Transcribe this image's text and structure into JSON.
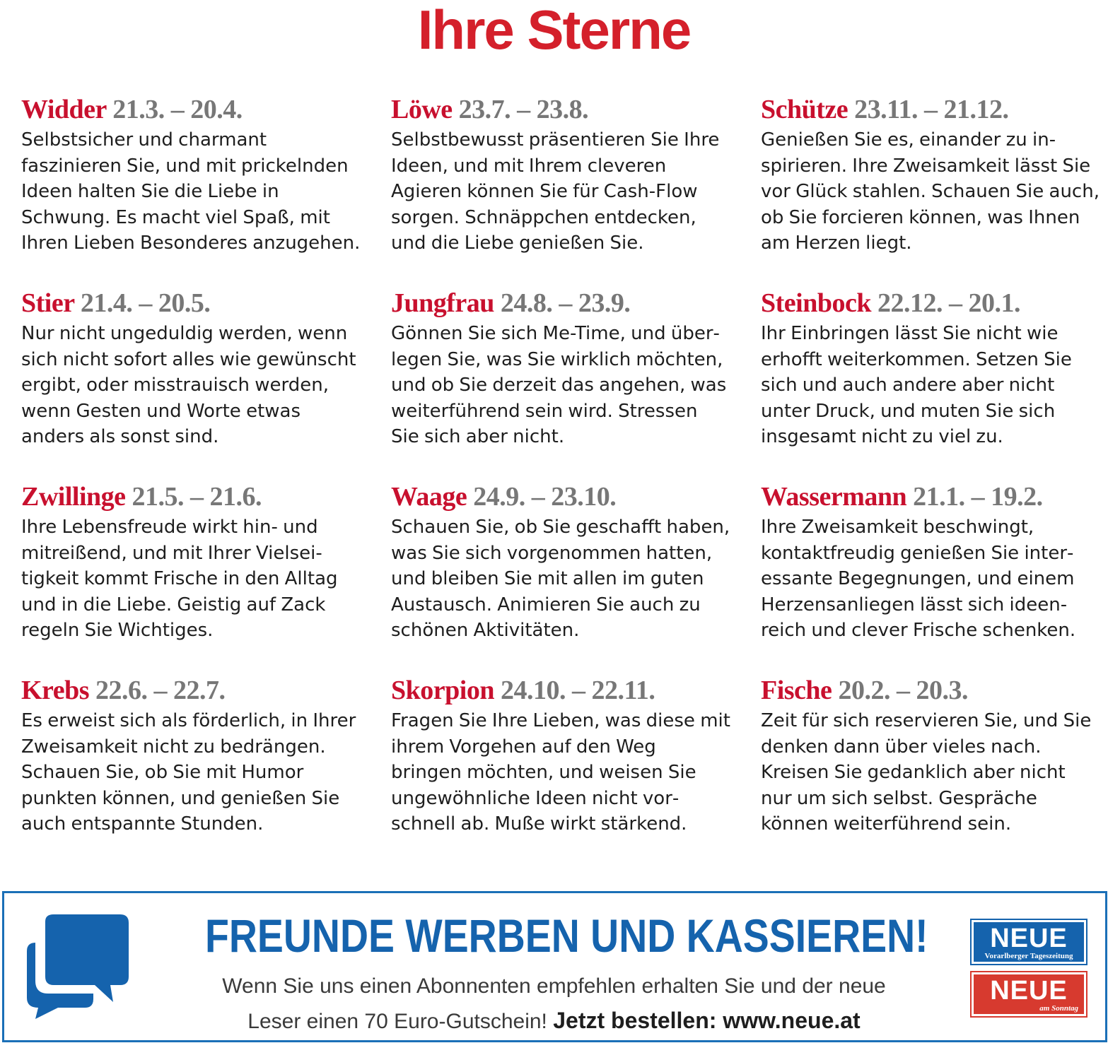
{
  "title": "Ihre Sterne",
  "signs": [
    {
      "name": "Widder",
      "dates": "21.3. – 20.4.",
      "text": "Selbstsicher und charmant faszinieren Sie, und mit prickeln­den Ideen halten Sie die Liebe in Schwung. Es macht viel Spaß, mit Ihren Lieben Besonderes anzugehen."
    },
    {
      "name": "Löwe",
      "dates": "23.7. – 23.8.",
      "text": "Selbstbewusst präsentieren Sie Ihre Ideen, und mit Ihrem cleveren Agieren können Sie für Cash-Flow sorgen. Schnäppchen entdecken, und die Liebe genießen Sie."
    },
    {
      "name": "Schütze",
      "dates": "23.11. – 21.12.",
      "text": "Genießen Sie es, einander zu in­spirieren. Ihre Zweisamkeit lässt Sie vor Glück stahlen. Schauen Sie auch, ob Sie forcieren können, was Ihnen am Herzen liegt."
    },
    {
      "name": "Stier",
      "dates": "21.4. – 20.5.",
      "text": "Nur nicht ungeduldig werden, wenn sich nicht sofort alles wie ge­wünscht ergibt, oder misstrauisch werden, wenn Gesten und Worte etwas anders als sonst sind."
    },
    {
      "name": "Jungfrau",
      "dates": "24.8. – 23.9.",
      "text": "Gönnen Sie sich Me-Time, und über­legen Sie, was Sie wirklich möchten, und ob Sie derzeit das angehen, was weiterführend sein wird. Stres­sen Sie sich aber nicht."
    },
    {
      "name": "Steinbock",
      "dates": "22.12. – 20.1.",
      "text": "Ihr Einbringen lässt Sie nicht wie erhofft weiterkommen. Setzen Sie sich und auch andere aber nicht unter Druck, und muten Sie sich insgesamt nicht zu viel zu."
    },
    {
      "name": "Zwillinge",
      "dates": "21.5. – 21.6.",
      "text": "Ihre Lebensfreude wirkt hin- und mitreißend, und mit Ihrer Vielsei­tigkeit kommt Frische in den Alltag und in die Liebe. Geistig auf Zack regeln Sie Wichtiges."
    },
    {
      "name": "Waage",
      "dates": "24.9. – 23.10.",
      "text": "Schauen Sie, ob Sie geschafft haben, was Sie sich vorgenommen hatten, und bleiben Sie mit allen im guten Austausch. Animieren Sie auch zu schönen Aktivitäten."
    },
    {
      "name": "Wassermann",
      "dates": "21.1. – 19.2.",
      "text": "Ihre Zweisamkeit beschwingt, kontaktfreudig genießen Sie inter­essante Begegnungen, und einem Herzensanliegen lässt sich ideen­reich und clever Frische schenken."
    },
    {
      "name": "Krebs",
      "dates": "22.6. – 22.7.",
      "text": "Es erweist sich als förderlich, in Ihrer Zweisamkeit nicht zu bedrän­gen. Schauen Sie, ob Sie mit Humor punkten können, und genießen Sie auch entspannte Stunden."
    },
    {
      "name": "Skorpion",
      "dates": "24.10. – 22.11.",
      "text": "Fragen Sie Ihre Lieben, was diese mit ihrem Vorgehen auf den Weg bringen möchten, und weisen Sie ungewöhnliche Ideen nicht vor­schnell ab. Muße wirkt stärkend."
    },
    {
      "name": "Fische",
      "dates": "20.2. – 20.3.",
      "text": "Zeit für sich reservieren Sie, und Sie denken dann über vieles nach. Kreisen Sie gedanklich aber nicht nur um sich selbst. Gespräche können weiterführend sein."
    }
  ],
  "promo": {
    "headline": "FREUNDE WERBEN UND KASSIEREN!",
    "body_line1": "Wenn Sie uns einen Abonnenten empfehlen erhalten Sie und der neue",
    "body_line2": "Leser einen 70 Euro-Gutschein!",
    "cta": "Jetzt bestellen: www.neue.at",
    "icon": "chat-bubbles-icon",
    "logo_top_word": "NEUE",
    "logo_top_sub": "Vorarlberger Tageszeitung",
    "logo_bottom_word": "NEUE",
    "logo_bottom_sub": "am Sonntag"
  },
  "colors": {
    "title_red": "#d4202b",
    "sign_red": "#c8102e",
    "date_gray": "#777777",
    "promo_blue": "#1563ad",
    "logo_red": "#d73a2f"
  }
}
